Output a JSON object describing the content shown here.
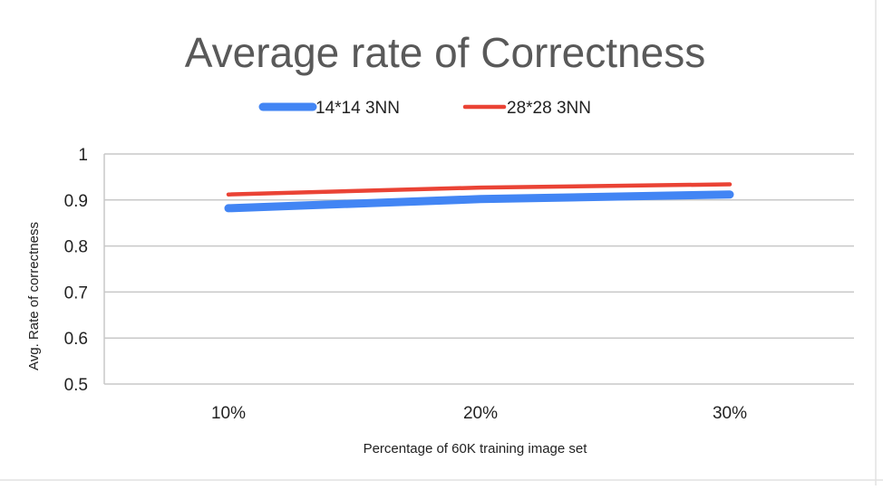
{
  "chart_data": {
    "type": "line",
    "title": "Average rate of Correctness",
    "xlabel": "Percentage of 60K training image set",
    "ylabel": "Avg. Rate of correctness",
    "categories": [
      "10%",
      "20%",
      "30%"
    ],
    "ylim": [
      0.5,
      1
    ],
    "yticks": [
      "0.5",
      "0.6",
      "0.7",
      "0.8",
      "0.9",
      "1"
    ],
    "grid": true,
    "legend_position": "top",
    "series": [
      {
        "name": "14*14 3NN",
        "color": "#4285f4",
        "values": [
          0.882,
          0.902,
          0.912
        ]
      },
      {
        "name": "28*28 3NN",
        "color": "#ea4335",
        "values": [
          0.912,
          0.927,
          0.934
        ]
      }
    ]
  }
}
